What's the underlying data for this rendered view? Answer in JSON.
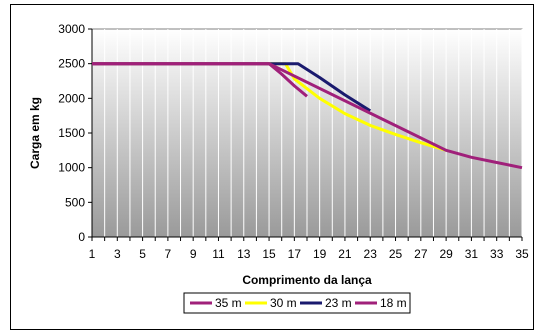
{
  "chart_data": {
    "type": "line",
    "xlabel": "Comprimento da lança",
    "ylabel": "Carga em kg",
    "xlim": [
      1,
      35
    ],
    "ylim": [
      0,
      3000
    ],
    "x_ticks": [
      "1",
      "3",
      "5",
      "7",
      "9",
      "11",
      "13",
      "15",
      "17",
      "19",
      "21",
      "23",
      "25",
      "27",
      "29",
      "31",
      "33",
      "35"
    ],
    "y_ticks": [
      "0",
      "500",
      "1000",
      "1500",
      "2000",
      "2500",
      "3000"
    ],
    "grid": "vertical",
    "plot_background": "gradient gray",
    "legend_position": "bottom",
    "series": [
      {
        "name": "35 m",
        "color": "#a0207a",
        "x": [
          1,
          15,
          29,
          31,
          33,
          35
        ],
        "y": [
          2500,
          2500,
          1250,
          1150,
          1075,
          1000
        ]
      },
      {
        "name": "30 m",
        "color": "#ffff00",
        "x": [
          1,
          16.3,
          17,
          19,
          21,
          23,
          25,
          27,
          29
        ],
        "y": [
          2500,
          2500,
          2280,
          2000,
          1780,
          1610,
          1480,
          1360,
          1250
        ]
      },
      {
        "name": "23 m",
        "color": "#1a1a6e",
        "x": [
          1,
          17.3,
          19,
          21,
          23
        ],
        "y": [
          2500,
          2500,
          2300,
          2050,
          1820
        ]
      },
      {
        "name": "18 m",
        "color": "#a0207a",
        "x": [
          1,
          15,
          16,
          17,
          18
        ],
        "y": [
          2500,
          2500,
          2350,
          2180,
          2030
        ]
      }
    ]
  }
}
